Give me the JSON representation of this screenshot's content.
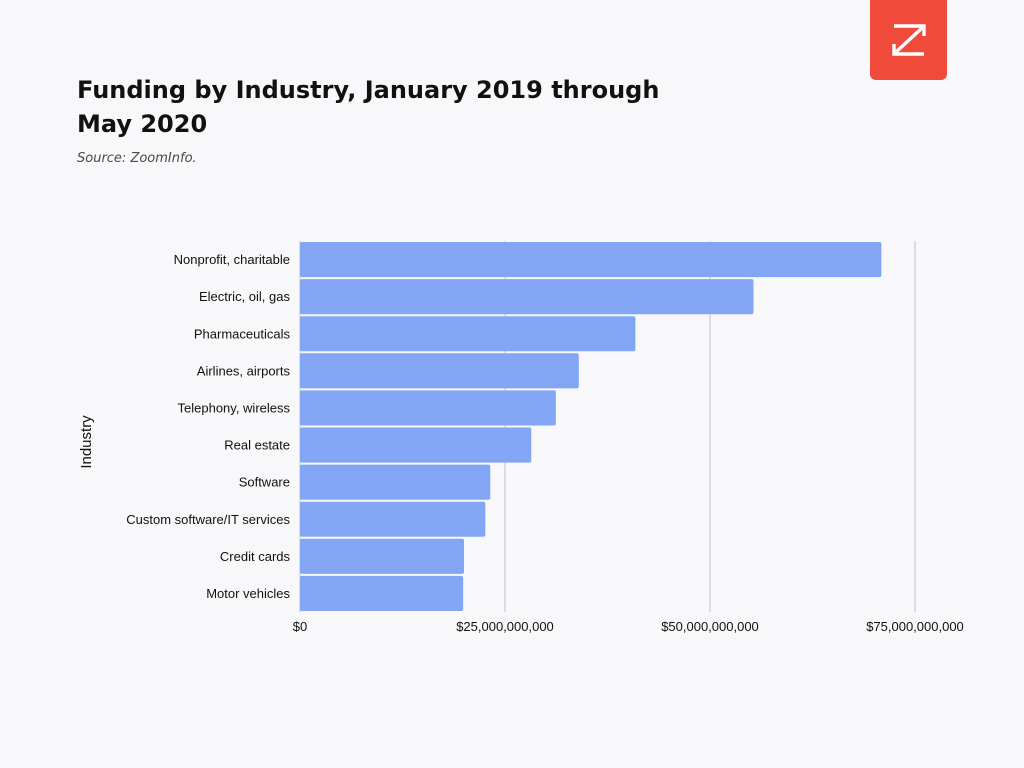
{
  "page": {
    "title": "Funding by Industry, January 2019 through May 2020",
    "source": "Source: ZoomInfo."
  },
  "logo": {
    "icon": "zoominfo-z-logo-icon",
    "color": "#f04a3a"
  },
  "chart_data": {
    "type": "bar",
    "orientation": "horizontal",
    "title": "Funding by Industry, January 2019 through May 2020",
    "subtitle": "Source: ZoomInfo.",
    "xlabel": "",
    "ylabel": "Industry",
    "categories": [
      "Nonprofit, charitable",
      "Electric, oil, gas",
      "Pharmaceuticals ",
      "Airlines, airports",
      "Telephony, wireless",
      "Real estate",
      "Software",
      "Custom software/IT services",
      "Credit cards",
      "Motor vehicles"
    ],
    "values": [
      70900000000,
      55300000000,
      40900000000,
      34000000000,
      31200000000,
      28200000000,
      23200000000,
      22600000000,
      20000000000,
      19900000000
    ],
    "xlim": [
      0,
      75000000000
    ],
    "xticks": [
      0,
      25000000000,
      50000000000,
      75000000000
    ],
    "xtick_labels": [
      "$0",
      "$25,000,000,000",
      "$50,000,000,000",
      "$75,000,000,000"
    ],
    "grid": true,
    "bar_color": "#82a6f3",
    "grid_color": "#d4d4d8"
  }
}
